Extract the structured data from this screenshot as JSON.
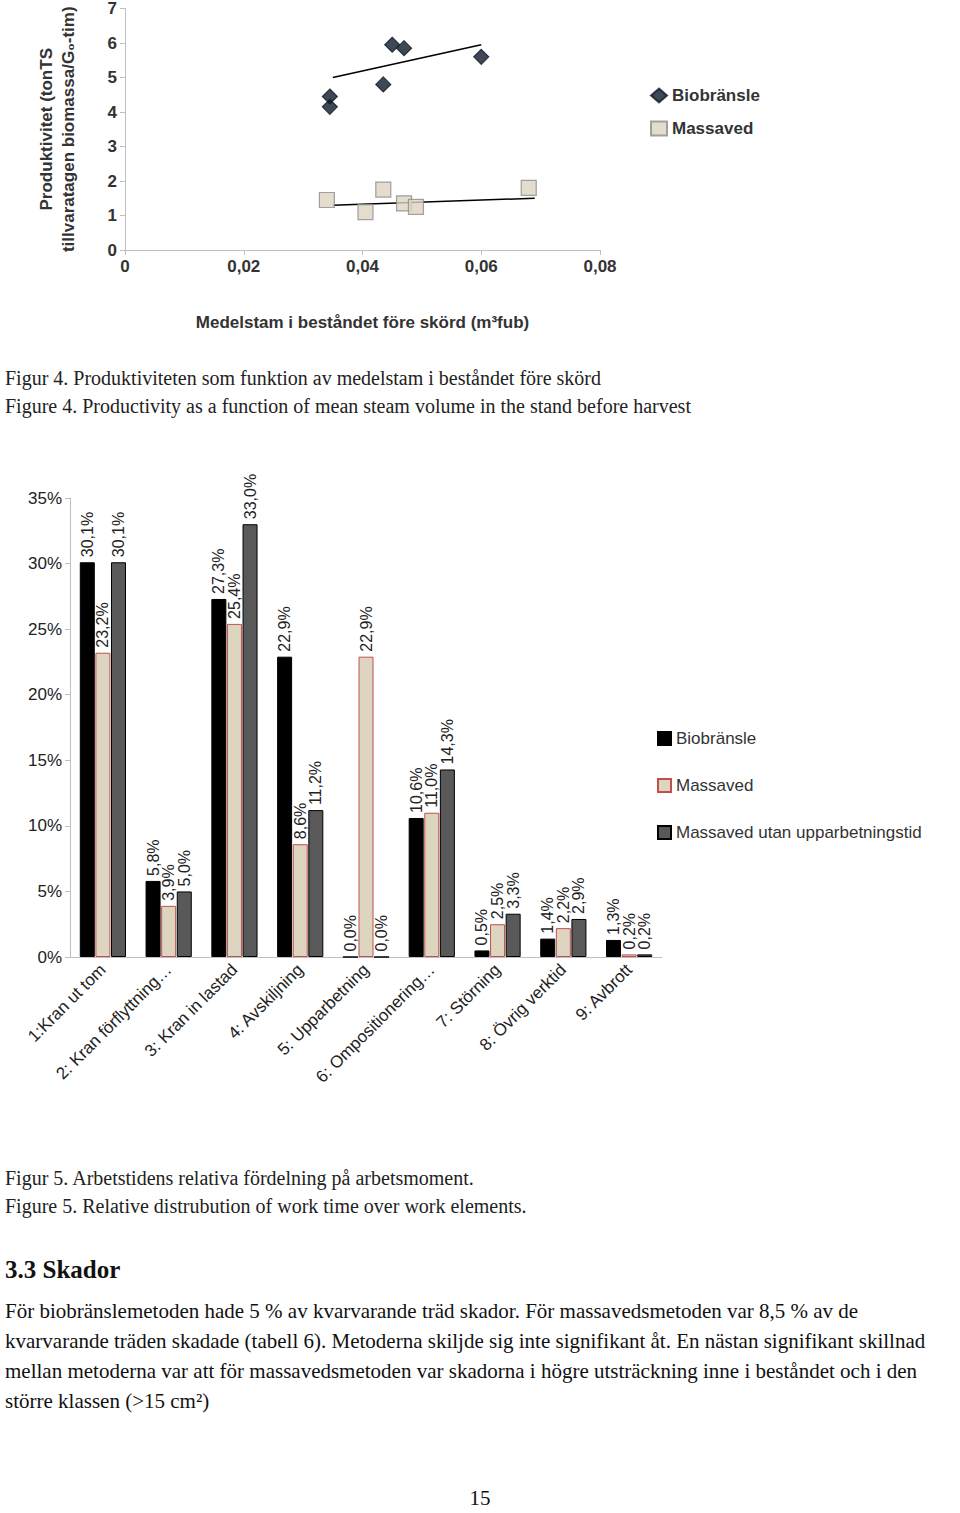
{
  "chart_data": [
    {
      "type": "scatter",
      "x_label": "Medelstam i beståndet före skörd (m³fub)",
      "y_label": [
        "Produktivitet (tonTS",
        "tillvaratagen biomassa/G₀-tim)"
      ],
      "xlim": [
        0,
        0.08
      ],
      "xticks": [
        0,
        {
          "value": 0.02,
          "label": "0,02"
        },
        {
          "value": 0.04,
          "label": "0,04"
        },
        {
          "value": 0.06,
          "label": "0,06"
        },
        {
          "value": 0.08,
          "label": "0,08"
        }
      ],
      "ylim": [
        0,
        7
      ],
      "yticks": [
        0,
        1,
        2,
        3,
        4,
        5,
        6,
        7
      ],
      "grid": false,
      "legend": "right",
      "series": [
        {
          "name": "Biobränsle",
          "color": "#0f1a2b",
          "marker": "diamond",
          "x": [
            0.0345,
            0.0345,
            0.0435,
            0.045,
            0.047,
            0.06
          ],
          "values": [
            4.45,
            4.15,
            4.8,
            5.95,
            5.85,
            5.6
          ],
          "trend": {
            "x": [
              0.035,
              0.06
            ],
            "values": [
              5.0,
              5.95
            ]
          }
        },
        {
          "name": "Massaved",
          "color": "#ddd5c0",
          "marker": "square",
          "x": [
            0.034,
            0.0405,
            0.0435,
            0.047,
            0.049,
            0.068
          ],
          "values": [
            1.45,
            1.1,
            1.75,
            1.35,
            1.25,
            1.8
          ],
          "trend": {
            "x": [
              0.035,
              0.069
            ],
            "values": [
              1.3,
              1.5
            ]
          }
        }
      ],
      "caption": [
        "Figur 4. Produktiviteten som funktion av medelstam i beståndet före skörd",
        "Figure 4. Productivity as a function of mean steam volume in the stand before harvest"
      ]
    },
    {
      "type": "bar",
      "categories": [
        "1:Kran ut tom",
        "2: Kran förflyttning…",
        "3: Kran in lastad",
        "4: Avskiljning",
        "5: Upparbetning",
        "6: Ompositionering…",
        "7: Störning",
        "8: Övrig verktid",
        "9: Avbrott"
      ],
      "ylim": [
        0,
        35
      ],
      "yticks": [
        {
          "value": 0,
          "label": "0%"
        },
        {
          "value": 5,
          "label": "5%"
        },
        {
          "value": 10,
          "label": "10%"
        },
        {
          "value": 15,
          "label": "15%"
        },
        {
          "value": 20,
          "label": "20%"
        },
        {
          "value": 25,
          "label": "25%"
        },
        {
          "value": 30,
          "label": "30%"
        },
        {
          "value": 35,
          "label": "35%"
        }
      ],
      "grid": false,
      "legend": "right",
      "data_labels": true,
      "series": [
        {
          "name": "Biobränsle",
          "color": "#000000",
          "values": [
            30.1,
            5.8,
            27.3,
            22.9,
            0.0,
            10.6,
            0.5,
            1.4,
            1.3
          ],
          "value_labels": [
            "30,1%",
            "5,8%",
            "27,3%",
            "22,9%",
            "0,0%",
            "10,6%",
            "0,5%",
            "1,4%",
            "1,3%"
          ]
        },
        {
          "name": "Massaved",
          "color": "#ddd5c0",
          "values": [
            23.2,
            3.9,
            25.4,
            8.6,
            22.9,
            11.0,
            2.5,
            2.2,
            0.2
          ],
          "value_labels": [
            "23,2%",
            "3,9%",
            "25,4%",
            "8,6%",
            "22,9%",
            "11,0%",
            "2,5%",
            "2,2%",
            "0,2%"
          ]
        },
        {
          "name": "Massaved utan upparbetningstid",
          "color": "#595959",
          "values": [
            30.1,
            5.0,
            33.0,
            11.2,
            0.0,
            14.3,
            3.3,
            2.9,
            0.2
          ],
          "value_labels": [
            "30,1%",
            "5,0%",
            "33,0%",
            "11,2%",
            "0,0%",
            "14,3%",
            "3,3%",
            "2,9%",
            "0,2%"
          ]
        }
      ],
      "caption": [
        "Figur 5. Arbetstidens relativa fördelning på arbetsmoment.",
        "Figure 5. Relative distrubution of work time over work elements."
      ]
    }
  ],
  "section": {
    "heading": "3.3 Skador",
    "paragraph": "För biobränslemetoden hade 5 % av kvarvarande träd skador. För massavedsmetoden var 8,5 % av de kvarvarande träden skadade (tabell 6). Metoderna skiljde sig inte signifikant åt. En nästan signifikant skillnad mellan metoderna var att för massavedsmetoden var skadorna i högre utsträckning inne i beståndet och i den större klassen (>15 cm²)"
  },
  "page_number": "15"
}
